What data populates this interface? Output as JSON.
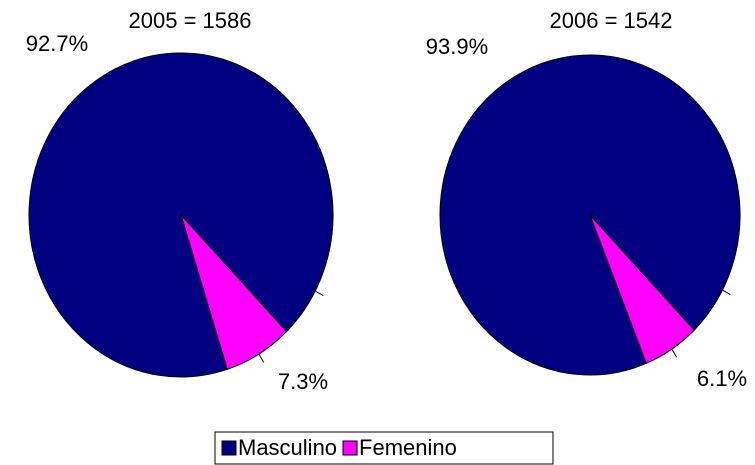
{
  "chart_data": [
    {
      "type": "pie",
      "title": "2005 = 1586",
      "categories": [
        "Masculino",
        "Femenino"
      ],
      "values": [
        92.7,
        7.3
      ],
      "value_labels": [
        "92.7%",
        "7.3%"
      ],
      "colors": [
        "#000080",
        "#ff00ff"
      ]
    },
    {
      "type": "pie",
      "title": "2006 = 1542",
      "categories": [
        "Masculino",
        "Femenino"
      ],
      "values": [
        93.9,
        6.1
      ],
      "value_labels": [
        "93.9%",
        "6.1%"
      ],
      "colors": [
        "#000080",
        "#ff00ff"
      ]
    }
  ]
}
